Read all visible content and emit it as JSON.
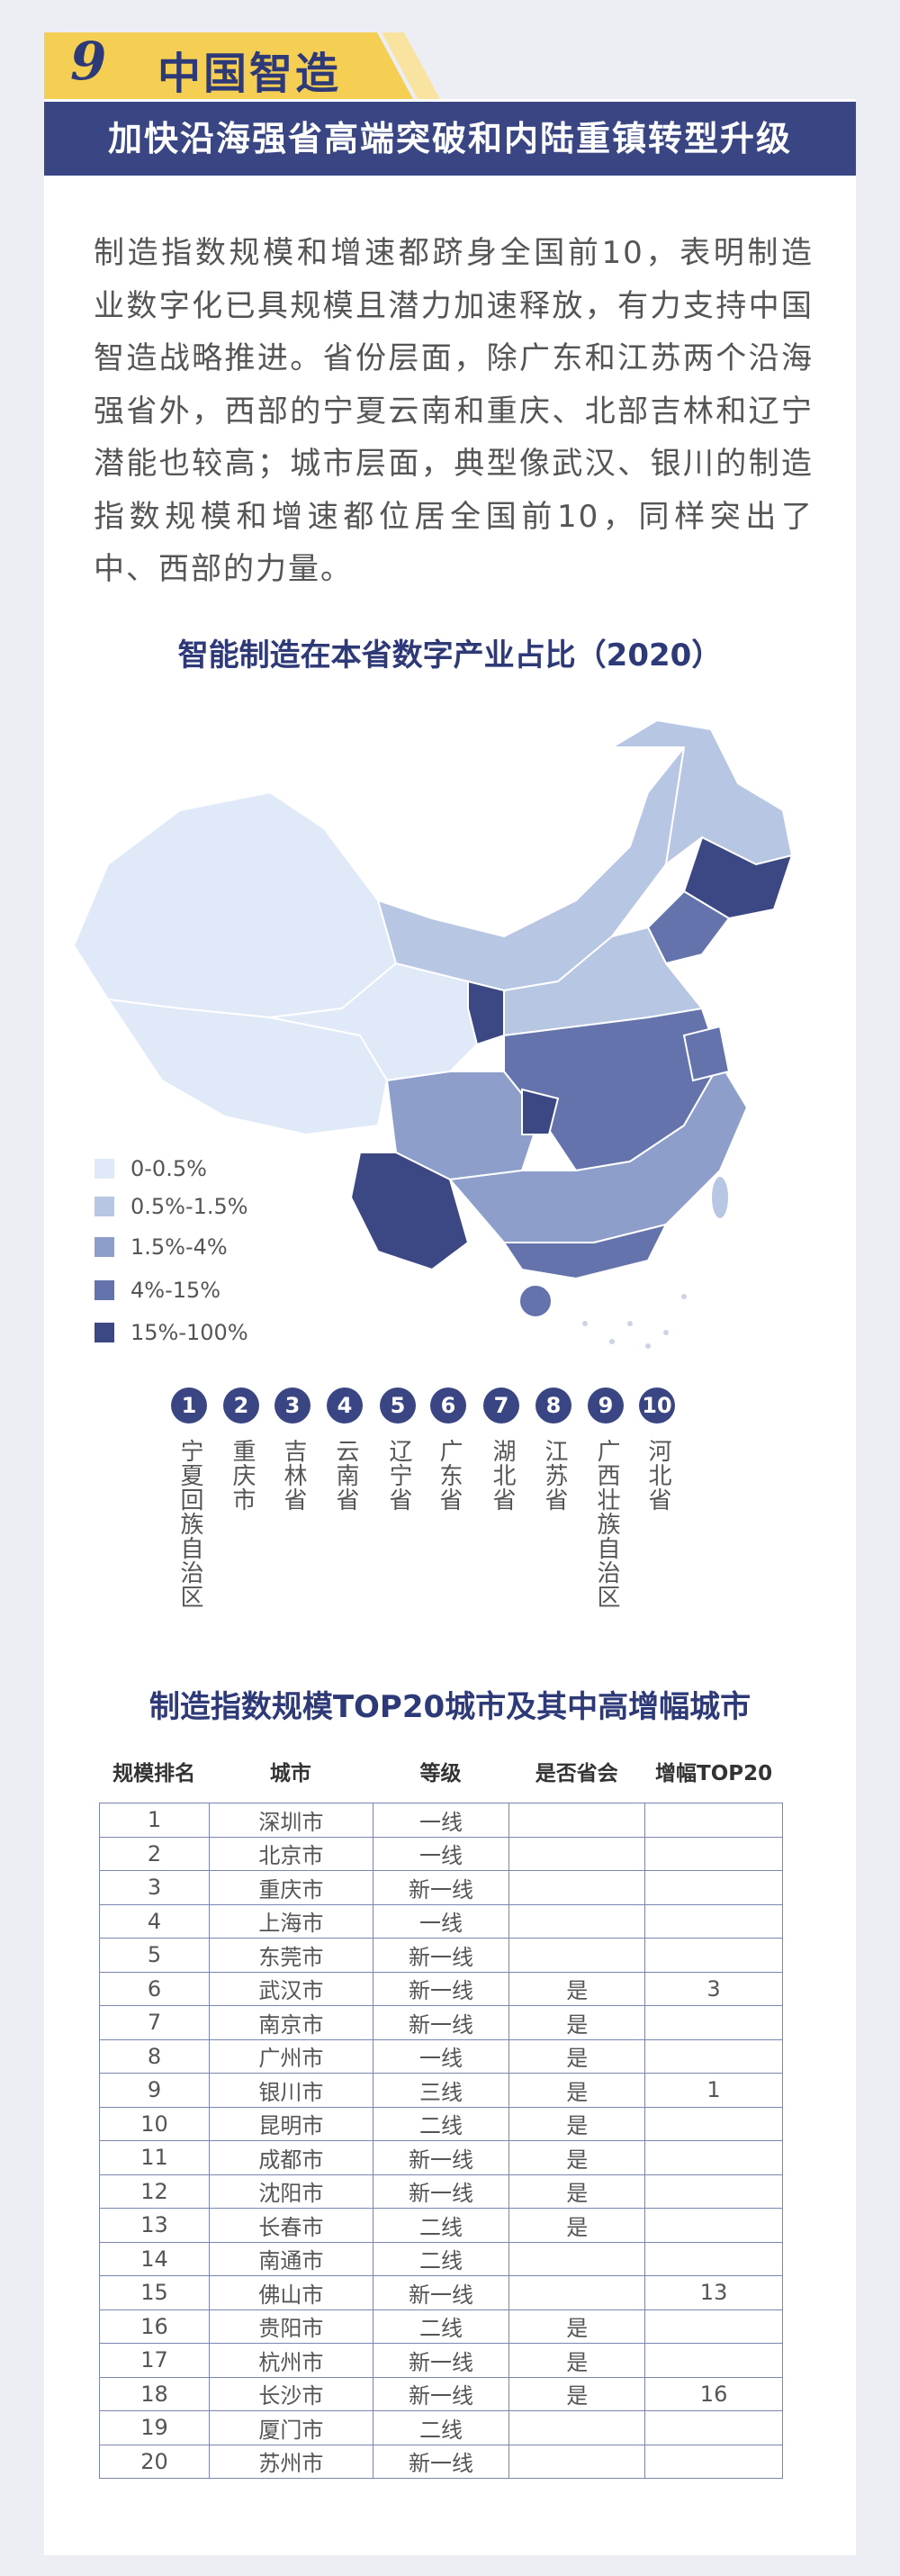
{
  "header": {
    "number": "9",
    "title": "中国智造",
    "subtitle": "加快沿海强省高端突破和内陆重镇转型升级"
  },
  "intro": "制造指数规模和增速都跻身全国前10，表明制造业数字化已具规模且潜力加速释放，有力支持中国智造战略推进。省份层面，除广东和江苏两个沿海强省外，西部的宁夏云南和重庆、北部吉林和辽宁潜能也较高；城市层面，典型像武汉、银川的制造指数规模和增速都位居全国前10，同样突出了中、西部的力量。",
  "map": {
    "title": "智能制造在本省数字产业占比（2020）",
    "legend": [
      {
        "label": "0-0.5%",
        "color": "#dfe9f7"
      },
      {
        "label": "0.5%-1.5%",
        "color": "#b6c6e3"
      },
      {
        "label": "1.5%-4%",
        "color": "#8d9ecb"
      },
      {
        "label": "4%-15%",
        "color": "#6473ab"
      },
      {
        "label": "15%-100%",
        "color": "#3b4884"
      }
    ]
  },
  "ranking": [
    {
      "rank": 1,
      "name": "宁夏回族自治区"
    },
    {
      "rank": 2,
      "name": "重庆市"
    },
    {
      "rank": 3,
      "name": "吉林省"
    },
    {
      "rank": 4,
      "name": "云南省"
    },
    {
      "rank": 5,
      "name": "辽宁省"
    },
    {
      "rank": 6,
      "name": "广东省"
    },
    {
      "rank": 7,
      "name": "湖北省"
    },
    {
      "rank": 8,
      "name": "江苏省"
    },
    {
      "rank": 9,
      "name": "广西壮族自治区"
    },
    {
      "rank": 10,
      "name": "河北省"
    }
  ],
  "table": {
    "title": "制造指数规模TOP20城市及其中高增幅城市",
    "columns": [
      "规模排名",
      "城市",
      "等级",
      "是否省会",
      "增幅TOP20"
    ],
    "rows": [
      [
        1,
        "深圳市",
        "一线",
        null,
        null
      ],
      [
        2,
        "北京市",
        "一线",
        null,
        null
      ],
      [
        3,
        "重庆市",
        "新一线",
        null,
        null
      ],
      [
        4,
        "上海市",
        "一线",
        null,
        null
      ],
      [
        5,
        "东莞市",
        "新一线",
        null,
        null
      ],
      [
        6,
        "武汉市",
        "新一线",
        "是",
        3
      ],
      [
        7,
        "南京市",
        "新一线",
        "是",
        null
      ],
      [
        8,
        "广州市",
        "一线",
        "是",
        null
      ],
      [
        9,
        "银川市",
        "三线",
        "是",
        1
      ],
      [
        10,
        "昆明市",
        "二线",
        "是",
        null
      ],
      [
        11,
        "成都市",
        "新一线",
        "是",
        null
      ],
      [
        12,
        "沈阳市",
        "新一线",
        "是",
        null
      ],
      [
        13,
        "长春市",
        "二线",
        "是",
        null
      ],
      [
        14,
        "南通市",
        "二线",
        null,
        null
      ],
      [
        15,
        "佛山市",
        "新一线",
        null,
        13
      ],
      [
        16,
        "贵阳市",
        "二线",
        "是",
        null
      ],
      [
        17,
        "杭州市",
        "新一线",
        "是",
        null
      ],
      [
        18,
        "长沙市",
        "新一线",
        "是",
        16
      ],
      [
        19,
        "厦门市",
        "二线",
        null,
        null
      ],
      [
        20,
        "苏州市",
        "新一线",
        null,
        null
      ]
    ]
  }
}
